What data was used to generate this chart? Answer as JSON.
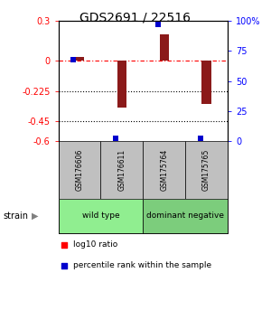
{
  "title": "GDS2691 / 22516",
  "samples": [
    "GSM176606",
    "GSM176611",
    "GSM175764",
    "GSM175765"
  ],
  "log10_ratio": [
    0.03,
    -0.35,
    0.2,
    -0.32
  ],
  "percentile_rank": [
    68,
    2,
    97,
    2
  ],
  "groups": [
    {
      "label": "wild type",
      "samples": [
        0,
        1
      ],
      "color": "#90EE90"
    },
    {
      "label": "dominant negative",
      "samples": [
        2,
        3
      ],
      "color": "#7CCD7C"
    }
  ],
  "ylim_left": [
    -0.6,
    0.3
  ],
  "ylim_right": [
    0,
    100
  ],
  "yticks_left": [
    0.3,
    0,
    -0.225,
    -0.45,
    -0.6
  ],
  "ytick_labels_left": [
    "0.3",
    "0",
    "-0.225",
    "-0.45",
    "-0.6"
  ],
  "yticks_right": [
    100,
    75,
    50,
    25,
    0
  ],
  "ytick_labels_right": [
    "100%",
    "75",
    "50",
    "25",
    "0"
  ],
  "hlines_dotted": [
    -0.225,
    -0.45
  ],
  "hline_dashdot": 0,
  "bar_color": "#8B1A1A",
  "point_color": "#0000CD",
  "bar_width": 0.22,
  "legend_red_label": "log10 ratio",
  "legend_blue_label": "percentile rank within the sample",
  "strain_label": "strain",
  "group1_color": "#90EE90",
  "group2_color": "#7CCD7C",
  "gray_color": "#C0C0C0",
  "title_fontsize": 10,
  "tick_fontsize": 7,
  "sample_fontsize": 5.5,
  "group_fontsize": 6.5,
  "legend_fontsize": 6.5
}
